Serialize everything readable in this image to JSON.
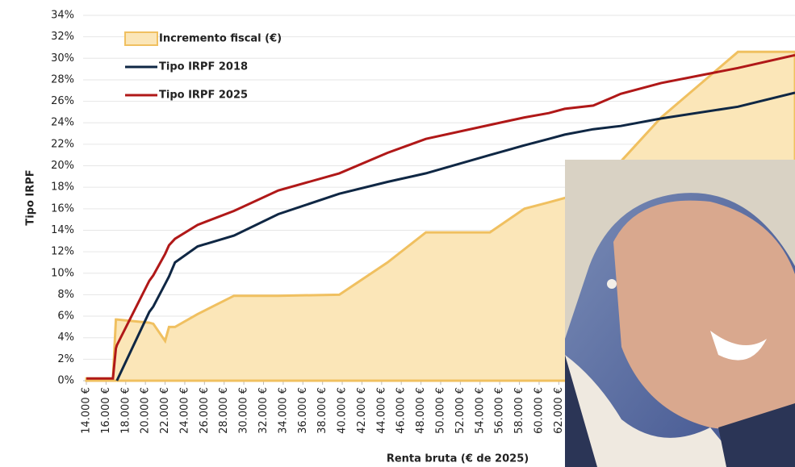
{
  "chart_data": {
    "type": "line",
    "y_label": "Tipo IRPF",
    "x_label": "Renta bruta (€ de 2025)",
    "x": [
      14000,
      16700,
      17000,
      17100,
      20400,
      20800,
      22000,
      22400,
      23000,
      25300,
      29000,
      33500,
      39700,
      44600,
      48500,
      55000,
      58500,
      61000,
      62600,
      65500,
      68300,
      72400,
      80200,
      86000
    ],
    "series": [
      {
        "name": "Incremento fiscal (€)",
        "color": "#f0c060",
        "fill": "#fbe6b8",
        "area": true,
        "values": [
          0.2,
          0.2,
          5.7,
          5.7,
          5.4,
          5.3,
          3.7,
          5.0,
          5.0,
          6.2,
          7.9,
          7.9,
          8.0,
          11.0,
          13.8,
          13.8,
          16.0,
          16.6,
          17.0,
          18.5,
          20.4,
          24.5,
          30.6,
          30.6
        ]
      },
      {
        "name": "Tipo IRPF 2018",
        "color": "#0f2744",
        "values": [
          null,
          null,
          null,
          0,
          6.4,
          6.9,
          9.0,
          9.7,
          11.0,
          12.5,
          13.5,
          15.5,
          17.4,
          18.5,
          19.3,
          21.0,
          21.9,
          22.5,
          22.9,
          23.4,
          23.7,
          24.4,
          25.5,
          26.8
        ]
      },
      {
        "name": "Tipo IRPF 2025",
        "color": "#b01818",
        "values": [
          0.2,
          0.2,
          3.0,
          3.3,
          9.3,
          9.8,
          11.8,
          12.6,
          13.2,
          14.5,
          15.8,
          17.7,
          19.3,
          21.2,
          22.5,
          23.8,
          24.5,
          24.9,
          25.3,
          25.6,
          26.7,
          27.7,
          29.1,
          30.3
        ]
      }
    ],
    "xlim": [
      14000,
      86000
    ],
    "ylim": [
      0,
      34
    ],
    "grid": true,
    "xticks": [
      {
        "value": 14000,
        "label": "14.000 €"
      },
      {
        "value": 16000,
        "label": "16.000 €"
      },
      {
        "value": 18000,
        "label": "18.000 €"
      },
      {
        "value": 20000,
        "label": "20.000 €"
      },
      {
        "value": 22000,
        "label": "22.000 €"
      },
      {
        "value": 24000,
        "label": "24.000 €"
      },
      {
        "value": 26000,
        "label": "26.000 €"
      },
      {
        "value": 28000,
        "label": "28.000 €"
      },
      {
        "value": 30000,
        "label": "30.000 €"
      },
      {
        "value": 32000,
        "label": "32.000 €"
      },
      {
        "value": 34000,
        "label": "34.000 €"
      },
      {
        "value": 36000,
        "label": "36.000 €"
      },
      {
        "value": 38000,
        "label": "38.000 €"
      },
      {
        "value": 40000,
        "label": "40.000 €"
      },
      {
        "value": 42000,
        "label": "42.000 €"
      },
      {
        "value": 44000,
        "label": "44.000 €"
      },
      {
        "value": 46000,
        "label": "46.000 €"
      },
      {
        "value": 48000,
        "label": "48.000 €"
      },
      {
        "value": 50000,
        "label": "50.000 €"
      },
      {
        "value": 52000,
        "label": "52.000 €"
      },
      {
        "value": 54000,
        "label": "54.000 €"
      },
      {
        "value": 56000,
        "label": "56.000 €"
      },
      {
        "value": 58000,
        "label": "58.000 €"
      },
      {
        "value": 60000,
        "label": "60.000 €"
      },
      {
        "value": 62000,
        "label": "62.000 €"
      }
    ],
    "yticks": [
      {
        "value": 0,
        "label": "0%"
      },
      {
        "value": 2,
        "label": "2%"
      },
      {
        "value": 4,
        "label": "4%"
      },
      {
        "value": 6,
        "label": "6%"
      },
      {
        "value": 8,
        "label": "8%"
      },
      {
        "value": 10,
        "label": "10%"
      },
      {
        "value": 12,
        "label": "12%"
      },
      {
        "value": 14,
        "label": "14%"
      },
      {
        "value": 16,
        "label": "16%"
      },
      {
        "value": 18,
        "label": "18%"
      },
      {
        "value": 20,
        "label": "20%"
      },
      {
        "value": 22,
        "label": "22%"
      },
      {
        "value": 24,
        "label": "24%"
      },
      {
        "value": 26,
        "label": "26%"
      },
      {
        "value": 28,
        "label": "28%"
      },
      {
        "value": 30,
        "label": "30%"
      },
      {
        "value": 32,
        "label": "32%"
      },
      {
        "value": 34,
        "label": "34%"
      }
    ]
  }
}
